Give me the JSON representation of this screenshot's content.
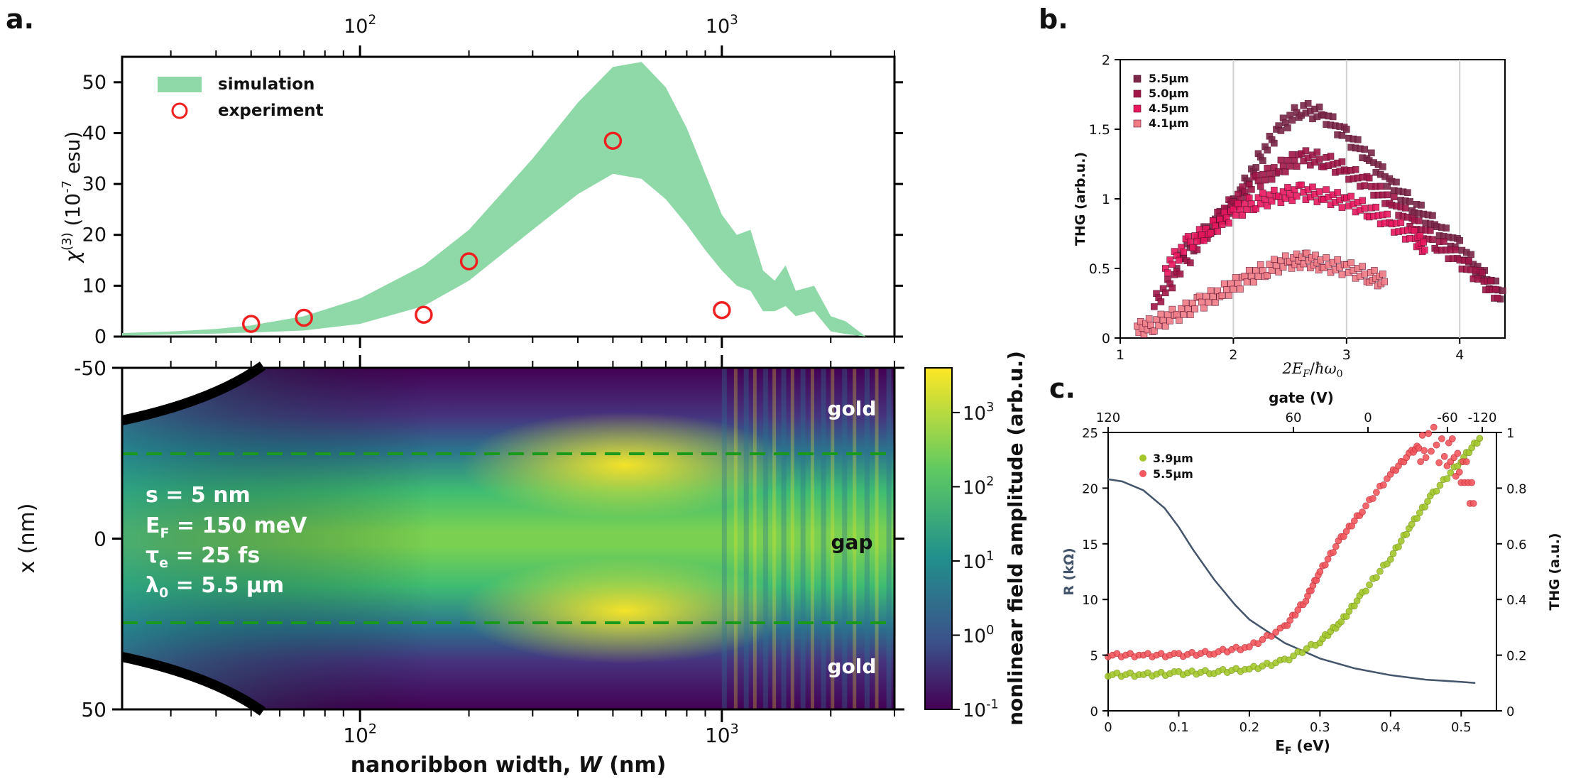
{
  "panels": {
    "a": "a.",
    "b": "b.",
    "c": "c."
  },
  "chart_data": [
    {
      "id": "a_top",
      "type": "scatter",
      "x_scale": "log",
      "xlim": [
        22,
        3000
      ],
      "ylim": [
        0,
        55
      ],
      "yticks": [
        0,
        10,
        20,
        30,
        40,
        50
      ],
      "top_tick_labels": [
        "10^2",
        "10^3"
      ],
      "ylabel_main": "χ",
      "ylabel_sup": "(3)",
      "ylabel_rest": " (10",
      "ylabel_exp": "-7",
      "ylabel_unit": " esu)",
      "legend": {
        "simulation": "simulation",
        "experiment": "experiment"
      },
      "simulation_band": {
        "x": [
          22,
          30,
          40,
          50,
          70,
          100,
          150,
          200,
          300,
          400,
          500,
          600,
          700,
          800,
          900,
          1000,
          1100,
          1200,
          1300,
          1400,
          1500,
          1600,
          1800,
          2000,
          2200,
          2500
        ],
        "upper": [
          0.7,
          1.0,
          1.5,
          2.2,
          4,
          7.5,
          14,
          21,
          35,
          46,
          53,
          54,
          49,
          41,
          32,
          24,
          20,
          21,
          13,
          11,
          14,
          9,
          10,
          4,
          3,
          0
        ],
        "lower": [
          0.2,
          0.4,
          0.6,
          0.8,
          1.2,
          2.5,
          6,
          11,
          21,
          28,
          32,
          31,
          27,
          22,
          17,
          13,
          10,
          9,
          5,
          5,
          6,
          4,
          5,
          1,
          0.5,
          0
        ]
      },
      "experiment": {
        "x": [
          50,
          70,
          150,
          200,
          500,
          1000
        ],
        "y": [
          2.5,
          3.7,
          4.3,
          14.8,
          38.5,
          5.2
        ]
      },
      "colors": {
        "simulation": "#8fd9a8",
        "experiment": "#ee2020"
      }
    },
    {
      "id": "a_bottom",
      "type": "heatmap",
      "x_scale": "log",
      "xlim": [
        22,
        3000
      ],
      "ylim": [
        -50,
        50
      ],
      "yticks": [
        -50,
        0,
        50
      ],
      "xlabel": "nanoribbon width, ",
      "xlabel_var": "W",
      "xlabel_unit": " (nm)",
      "ylabel": "x (nm)",
      "x_tick_labels": [
        "10^2",
        "10^3"
      ],
      "region_labels": {
        "top": "gold",
        "middle": "gap",
        "bottom": "gold"
      },
      "gap_lines_y": [
        -25,
        25
      ],
      "params": [
        {
          "text": "s = 5 nm"
        },
        {
          "text": "E",
          "sub": "F",
          "after": " = 150 meV"
        },
        {
          "text": "τ",
          "sub": "e",
          "after": " = 25 fs"
        },
        {
          "text": "λ",
          "sub": "0",
          "after": " = 5.5 µm"
        }
      ],
      "colorbar": {
        "label": "nonlinear field amplitude (arb.u.)",
        "scale": "log",
        "range": [
          0.1,
          4000
        ],
        "tick_exponents": [
          "-1",
          "0",
          "1",
          "2",
          "3"
        ]
      }
    },
    {
      "id": "b",
      "type": "scatter",
      "xlim": [
        1,
        4.4
      ],
      "ylim": [
        0,
        2
      ],
      "xticks": [
        1,
        2,
        3,
        4
      ],
      "yticks": [
        "0",
        "0.5",
        "1",
        "1.5",
        "2"
      ],
      "xlabel": "2E_F/ħω_0",
      "ylabel": "THG (arb.u.)",
      "series": [
        {
          "name": "5.5µm",
          "color": "#7a2848",
          "x": [
            1.5,
            1.8,
            2.0,
            2.2,
            2.4,
            2.6,
            2.8,
            3.0,
            3.2,
            3.4,
            3.6,
            3.8,
            4.0,
            4.2,
            4.4
          ],
          "y": [
            0.55,
            0.8,
            0.95,
            1.25,
            1.5,
            1.65,
            1.6,
            1.45,
            1.3,
            1.1,
            0.95,
            0.8,
            0.65,
            0.45,
            0.3
          ]
        },
        {
          "name": "5.0µm",
          "color": "#a11647",
          "x": [
            1.3,
            1.5,
            1.8,
            2.0,
            2.2,
            2.4,
            2.6,
            2.8,
            3.0,
            3.2,
            3.4,
            3.6,
            3.8,
            4.0,
            4.2,
            4.35
          ],
          "y": [
            0.25,
            0.45,
            0.8,
            0.98,
            1.12,
            1.22,
            1.3,
            1.28,
            1.2,
            1.1,
            0.98,
            0.82,
            0.68,
            0.56,
            0.42,
            0.3
          ]
        },
        {
          "name": "4.5µm",
          "color": "#e8175d",
          "x": [
            1.4,
            1.6,
            1.8,
            2.0,
            2.2,
            2.4,
            2.6,
            2.8,
            3.0,
            3.2,
            3.4,
            3.6,
            3.7
          ],
          "y": [
            0.5,
            0.68,
            0.78,
            0.9,
            0.98,
            1.02,
            1.05,
            1.02,
            0.98,
            0.92,
            0.82,
            0.72,
            0.65
          ]
        },
        {
          "name": "4.1µm",
          "color": "#f07c86",
          "x": [
            1.15,
            1.3,
            1.5,
            1.7,
            1.9,
            2.1,
            2.3,
            2.5,
            2.65,
            2.8,
            3.0,
            3.2,
            3.35
          ],
          "y": [
            0.06,
            0.1,
            0.17,
            0.25,
            0.33,
            0.42,
            0.5,
            0.55,
            0.56,
            0.53,
            0.5,
            0.45,
            0.4
          ]
        }
      ]
    },
    {
      "id": "c",
      "type": "scatter",
      "xlim": [
        0,
        0.55
      ],
      "ylim": [
        0,
        25
      ],
      "xticks": [
        "0",
        "0.1",
        "0.2",
        "0.3",
        "0.4",
        "0.5"
      ],
      "yticks": [
        "0",
        "5",
        "10",
        "15",
        "20",
        "25"
      ],
      "right_yticks": [
        "0",
        "0.2",
        "0.4",
        "0.6",
        "0.8",
        "1"
      ],
      "top_ticks": [
        "120",
        "60",
        "0",
        "-60",
        "-120"
      ],
      "top_label": "gate (V)",
      "xlabel": "E",
      "xlabel_sub": "F",
      "xlabel_unit": " (eV)",
      "ylabel": "R (kΩ)",
      "right_ylabel": "THG (a.u.)",
      "resistance_curve": {
        "color": "#44546a",
        "x": [
          0,
          0.02,
          0.05,
          0.08,
          0.1,
          0.12,
          0.15,
          0.18,
          0.2,
          0.25,
          0.3,
          0.35,
          0.4,
          0.45,
          0.5,
          0.52
        ],
        "y": [
          20.8,
          20.6,
          19.8,
          18.2,
          16.5,
          14.5,
          11.8,
          9.5,
          8.2,
          6.1,
          4.7,
          3.8,
          3.2,
          2.8,
          2.6,
          2.5
        ]
      },
      "series": [
        {
          "name": "3.9µm",
          "color": "#a4c82c",
          "x": [
            0,
            0.05,
            0.1,
            0.15,
            0.2,
            0.25,
            0.3,
            0.33,
            0.36,
            0.4,
            0.43,
            0.46,
            0.5,
            0.53
          ],
          "y": [
            0.13,
            0.13,
            0.135,
            0.14,
            0.15,
            0.18,
            0.25,
            0.32,
            0.42,
            0.55,
            0.67,
            0.78,
            0.9,
            0.99
          ]
        },
        {
          "name": "5.5µm",
          "color": "#f2575e",
          "x": [
            0,
            0.05,
            0.1,
            0.15,
            0.2,
            0.25,
            0.28,
            0.3,
            0.33,
            0.36,
            0.4,
            0.43,
            0.45,
            0.48,
            0.5,
            0.52
          ],
          "y": [
            0.2,
            0.2,
            0.2,
            0.21,
            0.23,
            0.3,
            0.4,
            0.5,
            0.62,
            0.72,
            0.85,
            0.93,
            0.97,
            0.94,
            0.88,
            0.76
          ]
        }
      ]
    }
  ]
}
